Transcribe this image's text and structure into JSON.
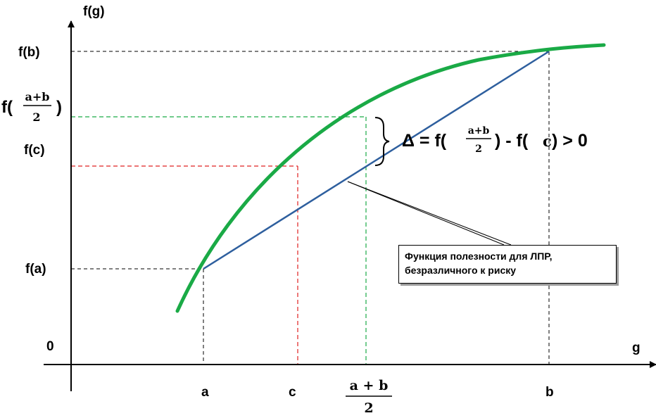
{
  "axes": {
    "y_label": "f(g)",
    "x_label": "g",
    "origin_label": "0"
  },
  "y_ticks": {
    "fb": "f(b)",
    "fc": "f(c)",
    "fa": "f(a)",
    "fmid_prefix": "f(",
    "fmid_num": "a+b",
    "fmid_den": "2",
    "fmid_suffix": ")"
  },
  "x_ticks": {
    "a": "a",
    "c": "c",
    "b": "b",
    "mid_num": "a + b",
    "mid_den": "2"
  },
  "delta": {
    "prefix": "Δ = f(",
    "num": "a+b",
    "den": "2",
    "suffix_1": ") - f(",
    "c": "c",
    "suffix_2": ") > 0"
  },
  "callout": {
    "line1": "Функция полезности для ЛПР,",
    "line2": "безразличного к риску"
  },
  "colors": {
    "utility_curve": "#1aaa46",
    "linear_line": "#2e5f9e",
    "guide_green": "#1aaa46",
    "guide_red": "#e02020",
    "guide_black": "#000000"
  }
}
